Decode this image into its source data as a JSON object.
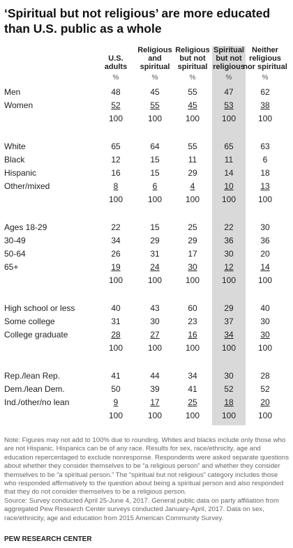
{
  "title": "‘Spiritual but not religious’ are more educated than U.S. public as a whole",
  "highlighted_column": 3,
  "columns": [
    {
      "label": "U.S.\nadults",
      "unit": "%"
    },
    {
      "label": "Religious\nand\nspiritual",
      "unit": "%"
    },
    {
      "label": "Religious\nbut not\nspiritual",
      "unit": "%"
    },
    {
      "label": "Spiritual\nbut not\nreligious",
      "unit": "%"
    },
    {
      "label": "Neither\nreligious\nnor spiritual",
      "unit": "%"
    }
  ],
  "groups": [
    {
      "rows": [
        {
          "label": "Men",
          "values": [
            48,
            45,
            55,
            47,
            62
          ]
        },
        {
          "label": "Women",
          "values": [
            52,
            55,
            45,
            53,
            38
          ]
        }
      ],
      "totals": [
        100,
        100,
        100,
        100,
        100
      ]
    },
    {
      "rows": [
        {
          "label": "White",
          "values": [
            65,
            64,
            55,
            65,
            63
          ]
        },
        {
          "label": "Black",
          "values": [
            12,
            15,
            11,
            11,
            6
          ]
        },
        {
          "label": "Hispanic",
          "values": [
            16,
            15,
            29,
            14,
            18
          ]
        },
        {
          "label": "Other/mixed",
          "values": [
            8,
            6,
            4,
            10,
            13
          ]
        }
      ],
      "totals": [
        100,
        100,
        100,
        100,
        100
      ]
    },
    {
      "rows": [
        {
          "label": "Ages 18-29",
          "values": [
            22,
            15,
            25,
            22,
            30
          ]
        },
        {
          "label": "30-49",
          "values": [
            34,
            29,
            29,
            36,
            36
          ]
        },
        {
          "label": "50-64",
          "values": [
            26,
            31,
            17,
            30,
            20
          ]
        },
        {
          "label": "65+",
          "values": [
            19,
            24,
            30,
            12,
            14
          ]
        }
      ],
      "totals": [
        100,
        100,
        100,
        100,
        100
      ]
    },
    {
      "rows": [
        {
          "label": "High school or less",
          "values": [
            40,
            43,
            60,
            29,
            40
          ]
        },
        {
          "label": "Some college",
          "values": [
            31,
            30,
            23,
            37,
            30
          ]
        },
        {
          "label": "College graduate",
          "values": [
            28,
            27,
            16,
            34,
            30
          ]
        }
      ],
      "totals": [
        100,
        100,
        100,
        100,
        100
      ]
    },
    {
      "rows": [
        {
          "label": "Rep./lean Rep.",
          "values": [
            41,
            44,
            34,
            30,
            28
          ]
        },
        {
          "label": "Dem./lean Dem.",
          "values": [
            50,
            39,
            41,
            52,
            52
          ]
        },
        {
          "label": "Ind./other/no lean",
          "values": [
            9,
            17,
            25,
            18,
            20
          ]
        }
      ],
      "totals": [
        100,
        100,
        100,
        100,
        100
      ]
    }
  ],
  "note": "Note: Figures may not add to 100% due to rounding. Whites and blacks include only those who are not Hispanic. Hispanics can be of any race. Results for sex, race/ethnicity, age and education repercentaged to exclude nonresponse. Respondents were asked separate questions about whether they consider themselves to be “a religious person” and whether they consider themselves to be “a spiritual person.” The “spiritual but not religious” category includes those who responded affirmatively to the question about being a spiritual person and also responded that they do not consider themselves to be a religious person.",
  "source": "Source: Survey conducted April 25-June 4, 2017. General public data on party affiliation from aggregated Pew Research Center surveys conducted January-April, 2017. Data on sex, race/ethnicity, age and education from 2015 American Community Survey.",
  "footer": "PEW RESEARCH CENTER"
}
